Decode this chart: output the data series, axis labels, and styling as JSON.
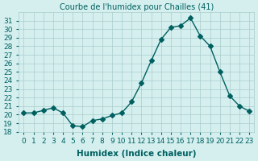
{
  "x": [
    0,
    1,
    2,
    3,
    4,
    5,
    6,
    7,
    8,
    9,
    10,
    11,
    12,
    13,
    14,
    15,
    16,
    17,
    18,
    19,
    20,
    21,
    22,
    23
  ],
  "y": [
    20.2,
    20.2,
    20.5,
    20.8,
    20.2,
    18.7,
    18.6,
    19.3,
    19.5,
    19.9,
    20.2,
    21.5,
    23.7,
    26.3,
    28.8,
    30.2,
    30.4,
    31.3,
    29.2,
    28.0,
    25.0,
    22.2,
    21.0,
    20.4
  ],
  "title": "Courbe de l'humidex pour Chailles (41)",
  "xlabel": "Humidex (Indice chaleur)",
  "ylabel": "",
  "ylim": [
    18,
    32
  ],
  "xlim": [
    -0.5,
    23.5
  ],
  "yticks": [
    18,
    19,
    20,
    21,
    22,
    23,
    24,
    25,
    26,
    27,
    28,
    29,
    30,
    31
  ],
  "xticks": [
    0,
    1,
    2,
    3,
    4,
    5,
    6,
    7,
    8,
    9,
    10,
    11,
    12,
    13,
    14,
    15,
    16,
    17,
    18,
    19,
    20,
    21,
    22,
    23
  ],
  "line_color": "#006060",
  "marker": "D",
  "marker_size": 3,
  "bg_color": "#d5efef",
  "grid_color": "#aacccc",
  "title_fontsize": 7,
  "label_fontsize": 7.5,
  "tick_fontsize": 6.5
}
